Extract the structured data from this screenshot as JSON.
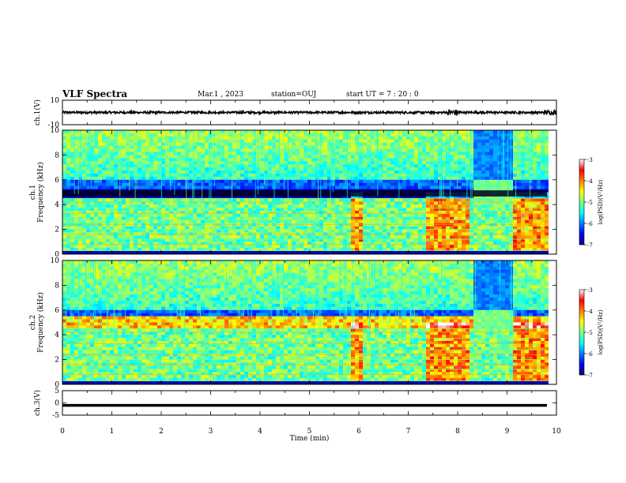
{
  "header": {
    "title": "VLF Spectra",
    "date": "Mar.1 , 2023",
    "station": "station=OUJ",
    "start": "start UT = 7 : 20 : 0"
  },
  "chart_data": [
    {
      "type": "line",
      "name": "ch1-waveform",
      "ylabel": "ch.1(V)",
      "ylim": [
        -10,
        10
      ],
      "yticks": [
        "10",
        "-10"
      ],
      "xlim": [
        0,
        10
      ],
      "signal": "noise band centred at 0 V, amplitude about ±1 V, bursts near 7.8–8.0 min and 9.8 min"
    },
    {
      "type": "heatmap",
      "name": "ch1-spectrogram",
      "ylabel": "ch.1\nFrequency (kHz)",
      "ylim": [
        0,
        10
      ],
      "yticks": [
        "0",
        "2",
        "4",
        "6",
        "8",
        "10"
      ],
      "xlim": [
        0,
        10
      ],
      "colorbar": {
        "label": "log(PSD)(V²/Hz)",
        "range": [
          -7,
          -3
        ],
        "ticks": [
          "-3",
          "-4",
          "-5",
          "-6",
          "-7"
        ],
        "colors": [
          "#00007f",
          "#0000ff",
          "#0080ff",
          "#00ffff",
          "#80ff80",
          "#ffff00",
          "#ff8000",
          "#ff0000",
          "#ffffff"
        ]
      },
      "features": {
        "dark_band_khz": [
          4.6,
          5.2
        ],
        "active_intervals_min": [
          [
            5.85,
            6.1
          ],
          [
            7.4,
            8.2
          ],
          [
            9.1,
            9.8
          ]
        ],
        "emission_interval_min": [
          8.3,
          9.1
        ],
        "emission_khz": [
          4.0,
          6.0
        ]
      }
    },
    {
      "type": "heatmap",
      "name": "ch2-spectrogram",
      "ylabel": "ch.2\nFrequency (kHz)",
      "ylim": [
        0,
        10
      ],
      "yticks": [
        "0",
        "2",
        "4",
        "6",
        "8",
        "10"
      ],
      "xlim": [
        0,
        10
      ],
      "colorbar": {
        "label": "log(PSD)(V²/Hz)",
        "range": [
          -7,
          -3
        ],
        "ticks": [
          "-3",
          "-4",
          "-5",
          "-6",
          "-7"
        ]
      },
      "features": {
        "active_intervals_min": [
          [
            5.85,
            6.1
          ],
          [
            7.4,
            8.2
          ],
          [
            9.1,
            9.8
          ]
        ],
        "emission_interval_min": [
          8.3,
          9.1
        ],
        "emission_khz": [
          4.2,
          6.0
        ]
      }
    },
    {
      "type": "line",
      "name": "ch3-waveform",
      "ylabel": "ch.3(V)",
      "ylim": [
        -5,
        5
      ],
      "yticks": [
        "5",
        "0",
        "-5"
      ],
      "xlim": [
        0,
        10
      ],
      "xlabel": "Time (min)",
      "xticks": [
        "0",
        "1",
        "2",
        "3",
        "4",
        "5",
        "6",
        "7",
        "8",
        "9",
        "10"
      ],
      "signal": "flat thick trace at about -1 V"
    }
  ]
}
